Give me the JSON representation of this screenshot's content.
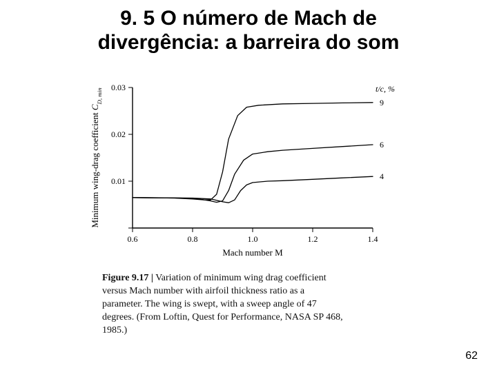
{
  "title_line1": "9. 5 O número de Mach de",
  "title_line2": "divergência: a barreira do som",
  "page_number": "62",
  "caption_bold": "Figure 9.17 |",
  "caption_rest": " Variation of minimum wing drag coefficient versus Mach number with airfoil thickness ratio as a parameter. The wing is swept, with a sweep angle of 47 degrees. (From Loftin, Quest for Performance, NASA SP 468, 1985.)",
  "chart": {
    "type": "line",
    "background_color": "#ffffff",
    "axis_color": "#000000",
    "line_color": "#000000",
    "line_width": 1.3,
    "xlabel": "Mach number M",
    "ylabel": "Minimum wing-drag coefficient C",
    "ylabel_sub": "D, min",
    "series_label_header": "t/c, %",
    "x": {
      "min": 0.6,
      "max": 1.4,
      "ticks": [
        0.6,
        0.8,
        1.0,
        1.2,
        1.4
      ]
    },
    "y": {
      "min": 0,
      "max": 0.03,
      "ticks": [
        0,
        0.01,
        0.02,
        0.03
      ],
      "tick_labels": [
        "",
        "0.01",
        "0.02",
        "0.03"
      ]
    },
    "label_fontsize": 13,
    "tick_fontsize": 12,
    "series": [
      {
        "label": "9",
        "points": [
          [
            0.6,
            0.0065
          ],
          [
            0.74,
            0.0064
          ],
          [
            0.8,
            0.0062
          ],
          [
            0.84,
            0.006
          ],
          [
            0.86,
            0.006
          ],
          [
            0.88,
            0.0072
          ],
          [
            0.9,
            0.012
          ],
          [
            0.92,
            0.019
          ],
          [
            0.95,
            0.024
          ],
          [
            0.98,
            0.0258
          ],
          [
            1.02,
            0.0262
          ],
          [
            1.1,
            0.0265
          ],
          [
            1.2,
            0.0266
          ],
          [
            1.3,
            0.0267
          ],
          [
            1.4,
            0.0268
          ]
        ]
      },
      {
        "label": "6",
        "points": [
          [
            0.6,
            0.0065
          ],
          [
            0.76,
            0.0064
          ],
          [
            0.82,
            0.0062
          ],
          [
            0.86,
            0.0058
          ],
          [
            0.88,
            0.0055
          ],
          [
            0.9,
            0.0058
          ],
          [
            0.92,
            0.008
          ],
          [
            0.94,
            0.0115
          ],
          [
            0.97,
            0.0145
          ],
          [
            1.0,
            0.0158
          ],
          [
            1.05,
            0.0163
          ],
          [
            1.1,
            0.0166
          ],
          [
            1.2,
            0.017
          ],
          [
            1.3,
            0.0174
          ],
          [
            1.4,
            0.0178
          ]
        ]
      },
      {
        "label": "4",
        "points": [
          [
            0.6,
            0.0065
          ],
          [
            0.8,
            0.0064
          ],
          [
            0.86,
            0.0062
          ],
          [
            0.9,
            0.0056
          ],
          [
            0.92,
            0.0054
          ],
          [
            0.94,
            0.006
          ],
          [
            0.96,
            0.008
          ],
          [
            0.98,
            0.0092
          ],
          [
            1.0,
            0.0097
          ],
          [
            1.05,
            0.01
          ],
          [
            1.1,
            0.0101
          ],
          [
            1.2,
            0.0104
          ],
          [
            1.3,
            0.0107
          ],
          [
            1.4,
            0.011
          ]
        ]
      }
    ]
  }
}
